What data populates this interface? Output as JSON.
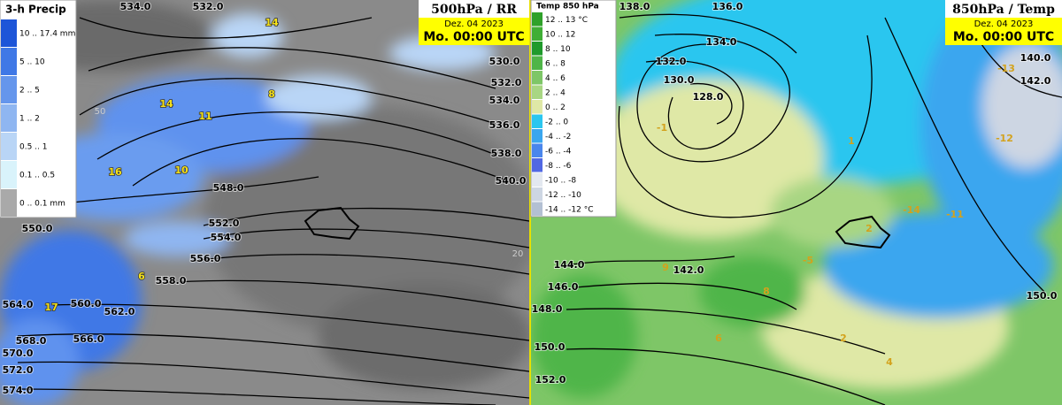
{
  "left_panel": {
    "title": "500hPa / RR",
    "date": "Dez. 04 2023",
    "time": "Mo. 00:00 UTC",
    "legend": {
      "title": "3-h Precip",
      "items": [
        {
          "label": "10 .. 17.4 mm",
          "color": "#1d55d8"
        },
        {
          "label": "5 .. 10",
          "color": "#3f78e6"
        },
        {
          "label": "2 .. 5",
          "color": "#6596ec"
        },
        {
          "label": "1 .. 2",
          "color": "#8fb6f1"
        },
        {
          "label": "0.5 .. 1",
          "color": "#b9d5f6"
        },
        {
          "label": "0.1 .. 0.5",
          "color": "#d9f3fb"
        },
        {
          "label": "0 .. 0.1 mm",
          "color": "#a9a9a9"
        }
      ]
    },
    "contour_labels": [
      "534.0",
      "532.0",
      "530.0",
      "532.0",
      "534.0",
      "536.0",
      "538.0",
      "540.0",
      "548.0",
      "550.0",
      "552.0",
      "554.0",
      "556.0",
      "558.0",
      "560.0",
      "562.0",
      "564.0",
      "566.0",
      "568.0",
      "570.0",
      "572.0",
      "574.0"
    ],
    "value_labels": [
      "14",
      "8",
      "14",
      "11",
      "16",
      "10",
      "6",
      "17"
    ],
    "grid_labels": [
      "50",
      "20"
    ]
  },
  "right_panel": {
    "title": "850hPa / Temp",
    "date": "Dez. 04 2023",
    "time": "Mo. 00:00 UTC",
    "legend": {
      "title": "Temp 850 hPa",
      "items": [
        {
          "label": "12 .. 13 °C",
          "color": "#2fa12a"
        },
        {
          "label": "10 .. 12",
          "color": "#3fae35"
        },
        {
          "label": "8 .. 10",
          "color": "#1f9a2c"
        },
        {
          "label": "6 .. 8",
          "color": "#4fb548"
        },
        {
          "label": "4 .. 6",
          "color": "#7ec667"
        },
        {
          "label": "2 .. 4",
          "color": "#a8d683"
        },
        {
          "label": "0 .. 2",
          "color": "#dfe8a6"
        },
        {
          "label": "-2 .. 0",
          "color": "#2bc6ef"
        },
        {
          "label": "-4 .. -2",
          "color": "#3aa6ef"
        },
        {
          "label": "-6 .. -4",
          "color": "#4a86ec"
        },
        {
          "label": "-8 .. -6",
          "color": "#5168e3"
        },
        {
          "label": "-10 .. -8",
          "color": "#e3e8f0"
        },
        {
          "label": "-12 .. -10",
          "color": "#cdd6e3"
        },
        {
          "label": "-14 .. -12 °C",
          "color": "#b3c0d3"
        }
      ]
    },
    "contour_labels": [
      "138.0",
      "136.0",
      "134.0",
      "132.0",
      "130.0",
      "128.0",
      "144.0",
      "142.0",
      "146.0",
      "148.0",
      "150.0",
      "152.0",
      "140.0",
      "142.0",
      "150.0"
    ],
    "value_labels": [
      "-1",
      "1",
      "-13",
      "-12",
      "-11",
      "-14",
      "2",
      "-5",
      "9",
      "8",
      "6",
      "2",
      "4"
    ]
  }
}
